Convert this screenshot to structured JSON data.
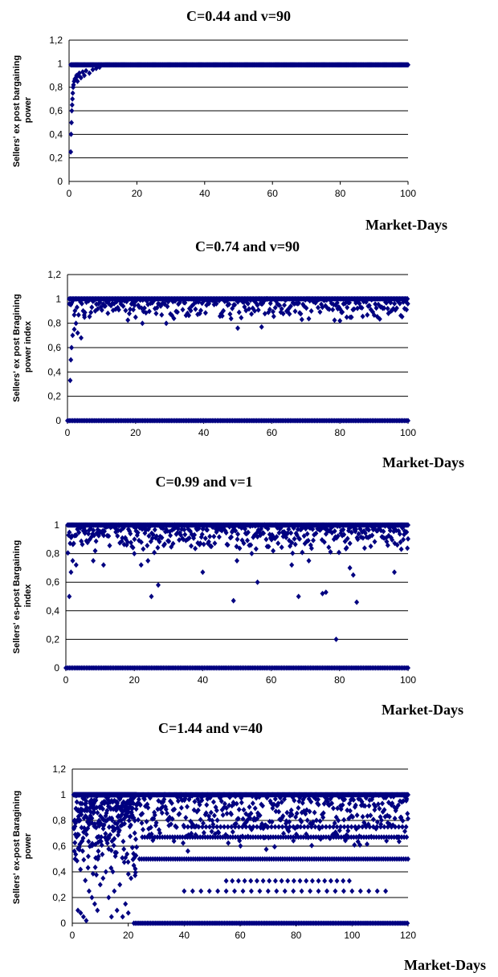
{
  "chart_data": [
    {
      "type": "scatter",
      "title": "C=0.44 and v=90",
      "xlabel": "Market-Days",
      "ylabel": [
        "Sellers' ex post bargaining",
        "power"
      ],
      "xlim": [
        0,
        100
      ],
      "ylim": [
        0,
        1.2
      ],
      "xticks": [
        "0",
        "20",
        "40",
        "60",
        "80",
        "100"
      ],
      "yticks": [
        "0",
        "0,2",
        "0,4",
        "0,6",
        "0,8",
        "1",
        "1,2"
      ],
      "grid": true,
      "color": "#000080",
      "series": [
        {
          "x": [
            0.5,
            0.6,
            0.7,
            0.8,
            0.9,
            1.0,
            1.1,
            1.2,
            1.3,
            1.5,
            1.7,
            2.0,
            2.2,
            2.5,
            2.8,
            3.0,
            3.5,
            4.0,
            4.5,
            5.0,
            6.0,
            7.0,
            8.0,
            9.0
          ],
          "y": [
            0.25,
            0.4,
            0.5,
            0.6,
            0.65,
            0.7,
            0.75,
            0.8,
            0.82,
            0.85,
            0.87,
            0.88,
            0.9,
            0.85,
            0.9,
            0.92,
            0.88,
            0.93,
            0.9,
            0.94,
            0.92,
            0.95,
            0.96,
            0.97
          ]
        },
        {
          "x_range": [
            0.5,
            100,
            0.25
          ],
          "y": 0.99
        }
      ]
    },
    {
      "type": "scatter",
      "title": "C=0.74 and v=90",
      "xlabel": "Market-Days",
      "ylabel": [
        "Sellers' ex post Bragining",
        "power index"
      ],
      "xlim": [
        0,
        100
      ],
      "ylim": [
        0,
        1.2
      ],
      "xticks": [
        "0",
        "20",
        "40",
        "60",
        "80",
        "100"
      ],
      "yticks": [
        "0",
        "0,2",
        "0,4",
        "0,6",
        "0,8",
        "1",
        "1,2"
      ],
      "grid": true,
      "color": "#000080",
      "series": [
        {
          "x": [
            0.8,
            1.0,
            1.2,
            1.5,
            2.0,
            2.5,
            3.0,
            4.0,
            5.0,
            20.0,
            22.0,
            29.0,
            50.0,
            57.0,
            80.0,
            82.0,
            95.0
          ],
          "y": [
            0.33,
            0.5,
            0.6,
            0.7,
            0.75,
            0.8,
            0.72,
            0.68,
            0.85,
            0.85,
            0.8,
            0.8,
            0.76,
            0.77,
            0.82,
            0.85,
            0.9
          ]
        },
        {
          "band": [
            0.82,
            1.0
          ],
          "x_range": [
            0.5,
            100,
            0.33
          ]
        },
        {
          "x_range": [
            0,
            100,
            0.5
          ],
          "y": 0
        }
      ]
    },
    {
      "type": "scatter",
      "title": "C=0.99 and v=1",
      "xlabel": "Market-Days",
      "ylabel": [
        "Sellers' es-post Bargaining",
        "index"
      ],
      "xlim": [
        0,
        100
      ],
      "ylim": [
        0,
        1
      ],
      "xticks": [
        "0",
        "20",
        "40",
        "60",
        "80",
        "100"
      ],
      "yticks": [
        "0",
        "0,2",
        "0,4",
        "0,6",
        "0,8",
        "1"
      ],
      "grid": true,
      "color": "#000080",
      "series": [
        {
          "x": [
            1.0,
            1.5,
            2.0,
            3.0,
            8.0,
            11.0,
            20.0,
            22.0,
            24.0,
            25.0,
            27.0,
            40.0,
            49.0,
            50.0,
            56.0,
            66.0,
            68.0,
            71.0,
            75.0,
            76.0,
            79.0,
            83.0,
            84.0,
            85.0,
            96.0
          ],
          "y": [
            0.5,
            0.67,
            0.75,
            0.72,
            0.75,
            0.72,
            0.8,
            0.72,
            0.75,
            0.5,
            0.58,
            0.67,
            0.47,
            0.75,
            0.6,
            0.72,
            0.5,
            0.75,
            0.52,
            0.53,
            0.2,
            0.7,
            0.65,
            0.46,
            0.67
          ]
        },
        {
          "band": [
            0.8,
            1.0
          ],
          "x_range": [
            0.5,
            100,
            0.25
          ]
        },
        {
          "x_range": [
            0,
            100,
            0.5
          ],
          "y": 0
        }
      ]
    },
    {
      "type": "scatter",
      "title": "C=1.44 and v=40",
      "xlabel": "Market-Days",
      "ylabel": [
        "Sellers' ex-post Baragining",
        "power"
      ],
      "xlim": [
        0,
        120
      ],
      "ylim": [
        0,
        1.2
      ],
      "xticks": [
        "0",
        "20",
        "40",
        "60",
        "80",
        "100",
        "120"
      ],
      "yticks": [
        "0",
        "0,2",
        "0,4",
        "0,6",
        "0,8",
        "1",
        "1,2"
      ],
      "grid": true,
      "color": "#000080",
      "series": [
        {
          "x": [
            1.0,
            2.0,
            3.0,
            4.0,
            5.0,
            6.0,
            7.0,
            8.0,
            9.0,
            10.0,
            11.0,
            12.0,
            13.0,
            14.0,
            15.0,
            16.0,
            17.0,
            18.0,
            19.0,
            20.0,
            21.0,
            22.0
          ],
          "y": [
            0.5,
            0.1,
            0.08,
            0.05,
            0.02,
            0.25,
            0.2,
            0.15,
            0.1,
            0.3,
            0.35,
            0.4,
            0.2,
            0.05,
            0.25,
            0.1,
            0.3,
            0.05,
            0.15,
            0.08,
            0.35,
            0.45
          ]
        },
        {
          "band": [
            0.3,
            1.0
          ],
          "x_range": [
            0.5,
            23,
            0.08
          ]
        },
        {
          "band": [
            0.55,
            1.0
          ],
          "x_range": [
            23,
            120,
            0.25
          ]
        },
        {
          "x_range": [
            22,
            120,
            0.6
          ],
          "y": 0.0
        },
        {
          "x_range": [
            24,
            120,
            0.8
          ],
          "y": 0.5
        },
        {
          "x_range": [
            25,
            120,
            0.9
          ],
          "y": 0.67
        },
        {
          "x_range": [
            40,
            120,
            1.3
          ],
          "y": 0.75
        },
        {
          "x_range": [
            55,
            100,
            2.2
          ],
          "y": 0.33
        },
        {
          "x_range": [
            40,
            112,
            3.0
          ],
          "y": 0.25
        }
      ]
    }
  ]
}
